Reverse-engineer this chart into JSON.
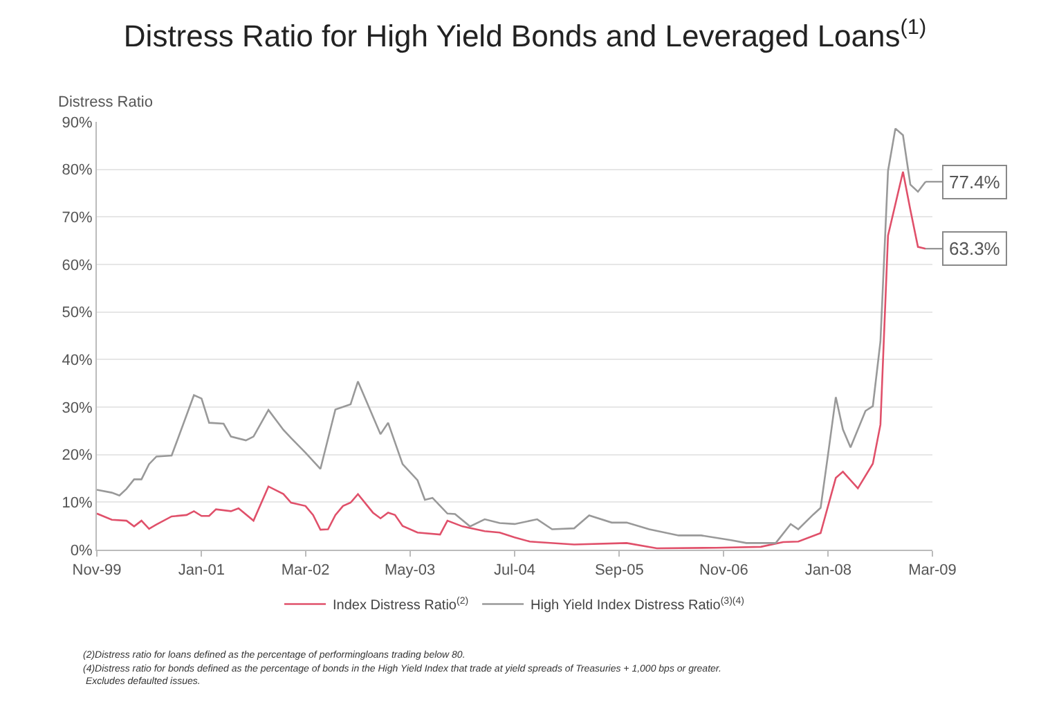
{
  "chart_data": {
    "type": "line",
    "title": "Distress Ratio for High Yield Bonds and Leveraged Loans$^{(1)}$",
    "ylabel": "Distress Ratio",
    "xlim": [
      "1999-11",
      "2009-03"
    ],
    "xticks": [
      {
        "value": "1999-11",
        "label": "Nov-99"
      },
      {
        "value": "2001-01",
        "label": "Jan-01"
      },
      {
        "value": "2002-03",
        "label": "Mar-02"
      },
      {
        "value": "2003-05",
        "label": "May-03"
      },
      {
        "value": "2004-07",
        "label": "Jul-04"
      },
      {
        "value": "2005-09",
        "label": "Sep-05"
      },
      {
        "value": "2006-11",
        "label": "Nov-06"
      },
      {
        "value": "2008-01",
        "label": "Jan-08"
      },
      {
        "value": "2009-03",
        "label": "Mar-09"
      }
    ],
    "ylim": [
      0,
      90
    ],
    "yticks": [
      {
        "value": 0,
        "label": "0%"
      },
      {
        "value": 10,
        "label": "10%"
      },
      {
        "value": 20,
        "label": "20%"
      },
      {
        "value": 30,
        "label": "30%"
      },
      {
        "value": 40,
        "label": "40%"
      },
      {
        "value": 50,
        "label": "50%"
      },
      {
        "value": 60,
        "label": "60%"
      },
      {
        "value": 70,
        "label": "70%"
      },
      {
        "value": 80,
        "label": "80%"
      },
      {
        "value": 90,
        "label": "90%"
      }
    ],
    "grid": "y",
    "legend": "bottom",
    "marker": "none",
    "line_style": "solid",
    "series": [
      {
        "name": "Index Distress Ratio$^{(2)}$",
        "color": "#e0506a",
        "x": [
          "1999-11",
          "2000-01",
          "2000-03",
          "2000-04",
          "2000-05",
          "2000-06",
          "2000-07",
          "2000-09",
          "2000-11",
          "2000-12",
          "2001-01",
          "2001-02",
          "2001-03",
          "2001-05",
          "2001-06",
          "2001-08",
          "2001-10",
          "2001-12",
          "2002-01",
          "2002-03",
          "2002-04",
          "2002-05",
          "2002-06",
          "2002-07",
          "2002-08",
          "2002-09",
          "2002-10",
          "2002-12",
          "2003-01",
          "2003-02",
          "2003-03",
          "2003-04",
          "2003-06",
          "2003-09",
          "2003-10",
          "2003-12",
          "2004-03",
          "2004-05",
          "2004-07",
          "2004-09",
          "2004-10",
          "2005-03",
          "2005-10",
          "2006-02",
          "2006-10",
          "2007-04",
          "2007-07",
          "2007-09",
          "2007-12",
          "2008-02",
          "2008-03",
          "2008-05",
          "2008-07",
          "2008-08",
          "2008-09",
          "2008-11",
          "2008-12",
          "2009-01",
          "2009-02"
        ],
        "values": [
          7.6,
          6.3,
          6.1,
          4.9,
          6.1,
          4.4,
          5.3,
          7,
          7.3,
          8.1,
          7.1,
          7.1,
          8.5,
          8.1,
          8.7,
          6.1,
          13.3,
          11.7,
          9.9,
          9.2,
          7.3,
          4.2,
          4.3,
          7.3,
          9.2,
          9.9,
          11.7,
          7.8,
          6.6,
          7.8,
          7.3,
          5,
          3.6,
          3.2,
          6.1,
          4.9,
          3.9,
          3.6,
          2.6,
          1.7,
          1.6,
          1.1,
          1.4,
          0.3,
          0.4,
          0.6,
          1.6,
          1.7,
          3.5,
          15.1,
          16.4,
          12.9,
          18.1,
          26.3,
          66.1,
          79.5,
          71.5,
          63.7,
          63.3
        ]
      },
      {
        "name": "High Yield Index Distress Ratio$^{(3)(4)}$",
        "color": "#999999",
        "x": [
          "1999-11",
          "2000-01",
          "2000-02",
          "2000-03",
          "2000-04",
          "2000-05",
          "2000-06",
          "2000-07",
          "2000-09",
          "2000-12",
          "2001-01",
          "2001-02",
          "2001-04",
          "2001-05",
          "2001-07",
          "2001-08",
          "2001-10",
          "2001-12",
          "2002-01",
          "2002-03",
          "2002-05",
          "2002-07",
          "2002-09",
          "2002-10",
          "2003-01",
          "2003-02",
          "2003-04",
          "2003-06",
          "2003-07",
          "2003-08",
          "2003-10",
          "2003-11",
          "2004-01",
          "2004-03",
          "2004-05",
          "2004-07",
          "2004-10",
          "2004-12",
          "2005-03",
          "2005-05",
          "2005-08",
          "2005-10",
          "2006-01",
          "2006-05",
          "2006-08",
          "2006-12",
          "2007-02",
          "2007-06",
          "2007-08",
          "2007-09",
          "2007-11",
          "2007-12",
          "2008-01",
          "2008-02",
          "2008-03",
          "2008-04",
          "2008-06",
          "2008-07",
          "2008-08",
          "2008-09",
          "2008-10",
          "2008-11",
          "2008-12",
          "2009-01",
          "2009-02"
        ],
        "values": [
          12.6,
          12,
          11.4,
          12.8,
          14.8,
          14.8,
          18,
          19.6,
          19.8,
          32.5,
          31.8,
          26.7,
          26.5,
          23.8,
          23,
          23.8,
          29.4,
          25.2,
          23.5,
          20.4,
          17,
          29.5,
          30.6,
          35.4,
          24.3,
          26.7,
          18,
          14.6,
          10.5,
          10.9,
          7.6,
          7.5,
          4.9,
          6.4,
          5.6,
          5.4,
          6.4,
          4.3,
          4.5,
          7.2,
          5.7,
          5.7,
          4.3,
          3,
          3,
          2,
          1.4,
          1.4,
          5.4,
          4.3,
          7.4,
          8.8,
          20.3,
          32.1,
          25.3,
          21.5,
          29.2,
          30.2,
          43.8,
          79.7,
          88.6,
          87.2,
          76.8,
          75.3,
          77.4
        ]
      }
    ],
    "annotations": [
      {
        "text": "77.4%",
        "x": "2009-02",
        "y": 77.4
      },
      {
        "text": "63.3%",
        "x": "2009-02",
        "y": 63.3
      },
      "(2)Distress ratio for loans defined as the percentage of performingloans trading below 80.",
      "(4)Distress ratio for bonds defined as the percentage of bonds in the High Yield Index that trade at yield spreads of Treasuries + 1,000 bps or greater.\n Excludes defaulted issues."
    ]
  }
}
